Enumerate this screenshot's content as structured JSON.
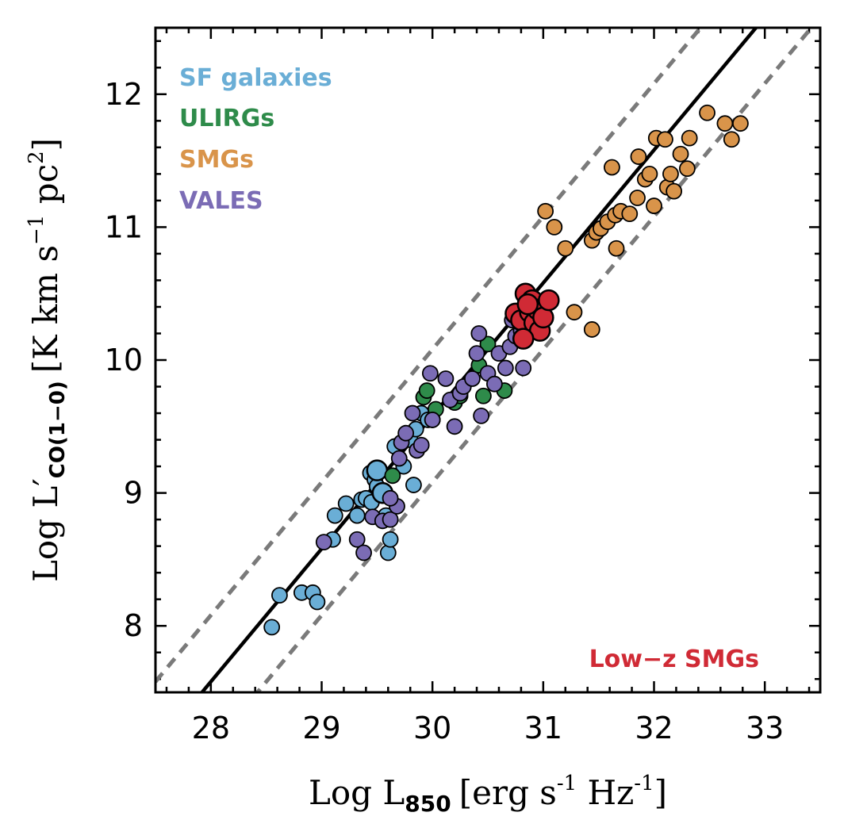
{
  "chart_data": {
    "type": "scatter",
    "xlabel": {
      "prefix": "Log L",
      "sub": "850",
      "units": "[erg s",
      "sup1": "-1",
      "mid": " Hz",
      "sup2": "-1",
      "end": "]"
    },
    "ylabel": {
      "prefix": "Log L′",
      "sub": "CO(1−0)",
      "units": "[K km s",
      "sup1": "−1",
      "mid": " pc",
      "sup2": "2",
      "end": "]"
    },
    "xlim": [
      27.5,
      33.5
    ],
    "ylim": [
      7.5,
      12.5
    ],
    "xticks": [
      "28",
      "29",
      "30",
      "31",
      "32",
      "33"
    ],
    "yticks": [
      "8",
      "9",
      "10",
      "11",
      "12"
    ],
    "fit_line": {
      "slope": 1.0,
      "intercept": -20.42
    },
    "scatter_band": {
      "offset": 0.5
    },
    "legend": [
      {
        "label": "SF galaxies",
        "color": "#6aaed6"
      },
      {
        "label": "ULIRGs",
        "color": "#2e8b4a"
      },
      {
        "label": "SMGs",
        "color": "#d9944a"
      },
      {
        "label": "VALES",
        "color": "#7b6cb5"
      }
    ],
    "annotation": {
      "label": "Low−z SMGs",
      "color": "#d02a35"
    },
    "series": [
      {
        "name": "SF galaxies",
        "color": "#6aaed6",
        "size": "small",
        "points": [
          [
            28.55,
            7.99
          ],
          [
            28.62,
            8.23
          ],
          [
            28.82,
            8.25
          ],
          [
            28.92,
            8.25
          ],
          [
            28.96,
            8.18
          ],
          [
            29.1,
            8.65
          ],
          [
            29.12,
            8.83
          ],
          [
            29.22,
            8.92
          ],
          [
            29.32,
            8.83
          ],
          [
            29.36,
            8.95
          ],
          [
            29.4,
            8.96
          ],
          [
            29.44,
            9.15
          ],
          [
            29.48,
            9.1
          ],
          [
            29.52,
            9.17
          ],
          [
            29.55,
            8.98
          ],
          [
            29.58,
            8.83
          ],
          [
            29.6,
            8.55
          ],
          [
            29.62,
            8.65
          ],
          [
            29.66,
            9.35
          ],
          [
            29.74,
            9.2
          ],
          [
            29.8,
            9.4
          ],
          [
            29.85,
            9.48
          ],
          [
            29.9,
            9.6
          ],
          [
            29.96,
            9.55
          ],
          [
            29.83,
            9.06
          ],
          [
            29.5,
            9.05
          ],
          [
            29.45,
            8.93
          ]
        ]
      },
      {
        "name": "SF galaxies (large)",
        "color": "#6aaed6",
        "size": "large",
        "points": [
          [
            29.5,
            9.17
          ],
          [
            29.55,
            9.0
          ]
        ]
      },
      {
        "name": "ULIRGs",
        "color": "#2e8b4a",
        "size": "small",
        "points": [
          [
            29.64,
            9.13
          ],
          [
            29.92,
            9.72
          ],
          [
            29.95,
            9.77
          ],
          [
            30.0,
            9.55
          ],
          [
            30.03,
            9.63
          ],
          [
            30.2,
            9.68
          ],
          [
            30.25,
            9.73
          ],
          [
            30.42,
            9.96
          ],
          [
            30.46,
            9.73
          ],
          [
            30.5,
            10.12
          ],
          [
            30.65,
            9.77
          ]
        ]
      },
      {
        "name": "VALES",
        "color": "#7b6cb5",
        "size": "small",
        "points": [
          [
            29.02,
            8.63
          ],
          [
            29.32,
            8.65
          ],
          [
            29.38,
            8.55
          ],
          [
            29.46,
            8.82
          ],
          [
            29.55,
            8.79
          ],
          [
            29.62,
            8.8
          ],
          [
            29.68,
            8.9
          ],
          [
            29.7,
            9.26
          ],
          [
            29.72,
            9.38
          ],
          [
            29.76,
            9.45
          ],
          [
            29.82,
            9.6
          ],
          [
            29.86,
            9.32
          ],
          [
            29.9,
            9.36
          ],
          [
            29.98,
            9.9
          ],
          [
            30.0,
            9.55
          ],
          [
            30.12,
            9.86
          ],
          [
            30.16,
            9.7
          ],
          [
            30.2,
            9.5
          ],
          [
            30.25,
            9.75
          ],
          [
            30.28,
            9.8
          ],
          [
            30.36,
            9.86
          ],
          [
            30.4,
            10.05
          ],
          [
            30.42,
            10.2
          ],
          [
            30.44,
            9.58
          ],
          [
            30.5,
            9.9
          ],
          [
            30.56,
            9.82
          ],
          [
            30.6,
            10.05
          ],
          [
            30.66,
            9.94
          ],
          [
            30.7,
            10.1
          ],
          [
            30.75,
            10.18
          ],
          [
            30.8,
            10.22
          ],
          [
            30.82,
            9.94
          ],
          [
            30.72,
            10.3
          ],
          [
            29.62,
            8.96
          ]
        ]
      },
      {
        "name": "SMGs",
        "color": "#d9944a",
        "size": "small",
        "points": [
          [
            31.02,
            11.12
          ],
          [
            31.1,
            11.0
          ],
          [
            31.2,
            10.84
          ],
          [
            31.28,
            10.36
          ],
          [
            31.44,
            10.23
          ],
          [
            31.44,
            10.9
          ],
          [
            31.48,
            10.96
          ],
          [
            31.52,
            10.99
          ],
          [
            31.58,
            11.04
          ],
          [
            31.62,
            11.45
          ],
          [
            31.65,
            11.09
          ],
          [
            31.66,
            10.84
          ],
          [
            31.7,
            11.12
          ],
          [
            31.78,
            11.1
          ],
          [
            31.85,
            11.22
          ],
          [
            31.86,
            11.53
          ],
          [
            31.92,
            11.36
          ],
          [
            31.96,
            11.4
          ],
          [
            32.0,
            11.16
          ],
          [
            32.02,
            11.67
          ],
          [
            32.1,
            11.66
          ],
          [
            32.12,
            11.3
          ],
          [
            32.15,
            11.4
          ],
          [
            32.18,
            11.27
          ],
          [
            32.24,
            11.55
          ],
          [
            32.3,
            11.44
          ],
          [
            32.32,
            11.67
          ],
          [
            32.48,
            11.86
          ],
          [
            32.64,
            11.78
          ],
          [
            32.7,
            11.66
          ],
          [
            32.78,
            11.78
          ]
        ]
      },
      {
        "name": "Low-z SMGs",
        "color": "#d02a35",
        "size": "large",
        "points": [
          [
            30.75,
            10.35
          ],
          [
            30.8,
            10.3
          ],
          [
            30.84,
            10.5
          ],
          [
            30.88,
            10.36
          ],
          [
            30.9,
            10.45
          ],
          [
            30.92,
            10.28
          ],
          [
            30.95,
            10.38
          ],
          [
            30.97,
            10.22
          ],
          [
            31.0,
            10.32
          ],
          [
            31.05,
            10.45
          ],
          [
            30.82,
            10.16
          ],
          [
            30.86,
            10.42
          ]
        ]
      }
    ]
  }
}
